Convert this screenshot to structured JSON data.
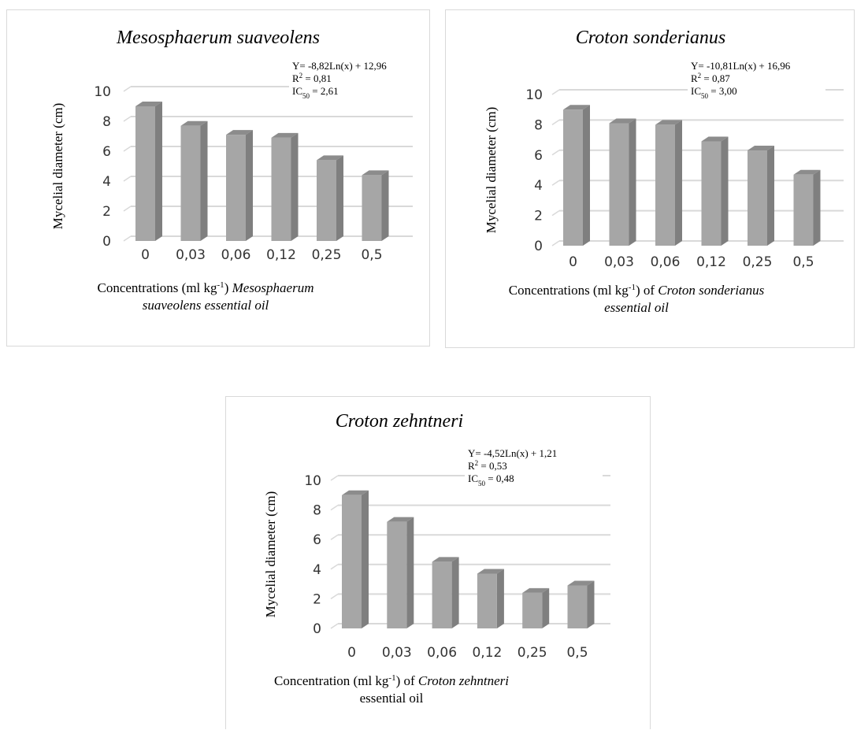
{
  "bar_colors": {
    "front": "#a6a6a6",
    "side": "#7f7f7f",
    "top": "#8c8c8c",
    "grid": "#d9d9d9"
  },
  "chart_data": [
    {
      "type": "bar",
      "title": "Mesosphaerum suaveolens",
      "equation": {
        "line1": "Y= -8,82Ln(x) + 12,96",
        "r2_label": "R",
        "r2_sup": "2",
        "r2_value": " = 0,81",
        "ic_label": "IC",
        "ic_sub": "50",
        "ic_value": " = 2,61"
      },
      "ylabel": "Mycelial diameter (cm)",
      "xlabel": {
        "line1_pre": "Concentrations (ml kg",
        "line1_sup": "-1",
        "line1_post": ") ",
        "line1_italic": "Mesosphaerum",
        "line2_italic": "suaveolens essential oil",
        "line2_post": ""
      },
      "categories": [
        "0",
        "0,03",
        "0,06",
        "0,12",
        "0,25",
        "0,5"
      ],
      "values": [
        9.0,
        7.7,
        7.1,
        6.9,
        5.4,
        4.4
      ],
      "ylim": [
        0,
        10
      ],
      "yticks": [
        "0",
        "2",
        "4",
        "6",
        "8",
        "10"
      ],
      "grid": true
    },
    {
      "type": "bar",
      "title": "Croton sonderianus",
      "equation": {
        "line1": "Y= -10,81Ln(x) + 16,96",
        "r2_label": "R",
        "r2_sup": "2",
        "r2_value": " = 0,87",
        "ic_label": "IC",
        "ic_sub": "50",
        "ic_value": " = 3,00"
      },
      "ylabel": "Mycelial diameter (cm)",
      "xlabel": {
        "line1_pre": "Concentrations (ml kg",
        "line1_sup": "-1",
        "line1_post": ") of ",
        "line1_italic": "Croton sonderianus",
        "line2_italic": "essential oil",
        "line2_post": ""
      },
      "categories": [
        "0",
        "0,03",
        "0,06",
        "0,12",
        "0,25",
        "0,5"
      ],
      "values": [
        9.0,
        8.1,
        8.0,
        6.9,
        6.3,
        4.7
      ],
      "ylim": [
        0,
        10
      ],
      "yticks": [
        "0",
        "2",
        "4",
        "6",
        "8",
        "10"
      ],
      "grid": true
    },
    {
      "type": "bar",
      "title": "Croton zehntneri",
      "equation": {
        "line1": "Y= -4,52Ln(x) + 1,21",
        "r2_label": "R",
        "r2_sup": "2",
        "r2_value": " = 0,53",
        "ic_label": "IC",
        "ic_sub": "50",
        "ic_value": " = 0,48"
      },
      "ylabel": "Mycelial diameter (cm)",
      "xlabel": {
        "line1_pre": "Concentration (ml kg",
        "line1_sup": "-1",
        "line1_post": ") of ",
        "line1_italic": "Croton zehntneri",
        "line2_italic": "",
        "line2_post": "essential oil"
      },
      "categories": [
        "0",
        "0,03",
        "0,06",
        "0,12",
        "0,25",
        "0,5"
      ],
      "values": [
        9.0,
        7.2,
        4.5,
        3.7,
        2.4,
        2.9
      ],
      "ylim": [
        0,
        10
      ],
      "yticks": [
        "0",
        "2",
        "4",
        "6",
        "8",
        "10"
      ],
      "grid": true
    }
  ]
}
